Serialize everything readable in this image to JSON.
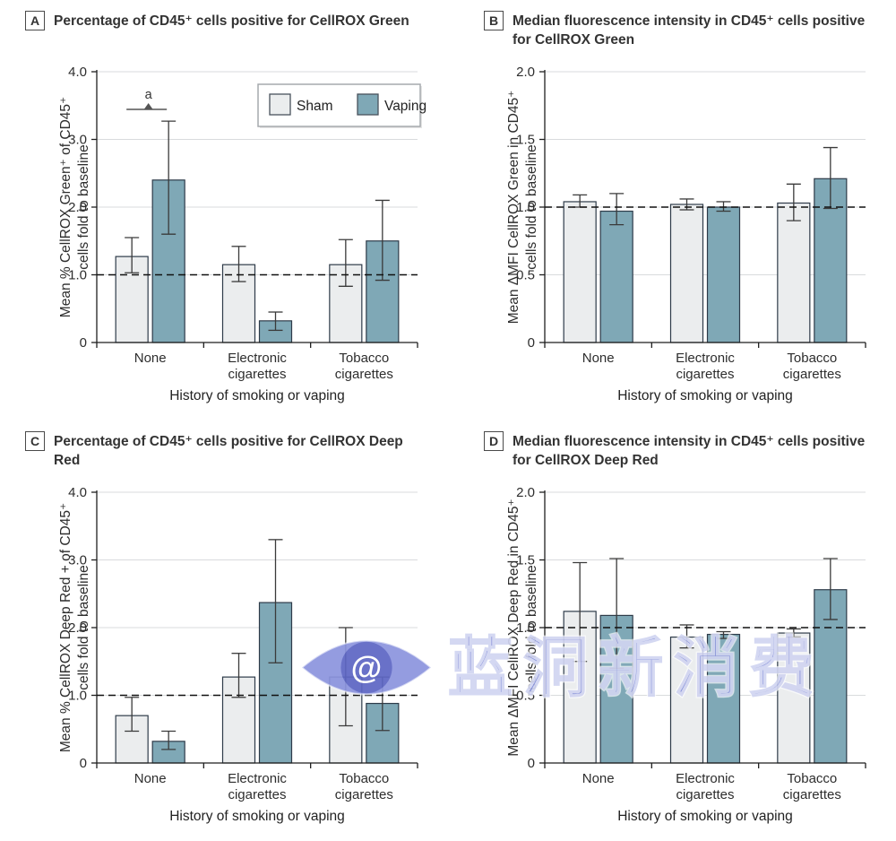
{
  "figure": {
    "type": "scientific-figure",
    "watermark": {
      "icon": "eye-at-logo",
      "at_symbol": "@",
      "text": "蓝洞新消费",
      "color": "#7b86d6"
    },
    "colors": {
      "sham_fill": "#ebedee",
      "vaping_fill": "#7fa8b6",
      "bar_stroke": "#2e3b49",
      "grid": "#d9dbdd",
      "axis": "#1f1f1f",
      "dashed_line": "#111111",
      "error_bar": "#3a3a3a"
    }
  },
  "chart_data": [
    {
      "id": "A",
      "type": "bar",
      "title": "Percentage of CD45⁺ cells positive for CellROX Green",
      "ylabel_lines": [
        "Mean % CellROX Green⁺ of CD45⁺",
        "cells fold to baseline"
      ],
      "ylim": [
        0,
        4.0
      ],
      "yticks": [
        {
          "v": 0,
          "label": "0"
        },
        {
          "v": 1,
          "label": "1.0"
        },
        {
          "v": 2,
          "label": "2.0"
        },
        {
          "v": 3,
          "label": "3.0"
        },
        {
          "v": 4,
          "label": "4.0"
        }
      ],
      "baseline": 1.0,
      "grid": true,
      "categories": [
        [
          "None"
        ],
        [
          "Electronic",
          "cigarettes"
        ],
        [
          "Tobacco",
          "cigarettes"
        ]
      ],
      "xlabel": "History of smoking or vaping",
      "series": [
        {
          "name": "Sham",
          "color": "#ebedee",
          "values": [
            1.27,
            1.15,
            1.15
          ],
          "err_lo": [
            1.03,
            0.9,
            0.83
          ],
          "err_hi": [
            1.55,
            1.42,
            1.52
          ]
        },
        {
          "name": "Vaping",
          "color": "#7fa8b6",
          "values": [
            2.4,
            0.32,
            1.5
          ],
          "err_lo": [
            1.6,
            0.18,
            0.92
          ],
          "err_hi": [
            3.27,
            0.45,
            2.1
          ]
        }
      ],
      "legend": true,
      "legend_position": "top-right",
      "significance": {
        "label": "a",
        "group": 0
      }
    },
    {
      "id": "B",
      "type": "bar",
      "title": "Median fluorescence intensity in CD45⁺ cells positive for CellROX Green",
      "ylabel_lines": [
        "Mean ΔMFI CellROX Green in CD45⁺",
        "cells fold to baseline"
      ],
      "ylim": [
        0,
        2.0
      ],
      "yticks": [
        {
          "v": 0,
          "label": "0"
        },
        {
          "v": 0.5,
          "label": "0.5"
        },
        {
          "v": 1,
          "label": "1.0"
        },
        {
          "v": 1.5,
          "label": "1.5"
        },
        {
          "v": 2,
          "label": "2.0"
        }
      ],
      "baseline": 1.0,
      "grid": true,
      "categories": [
        [
          "None"
        ],
        [
          "Electronic",
          "cigarettes"
        ],
        [
          "Tobacco",
          "cigarettes"
        ]
      ],
      "xlabel": "History of smoking or vaping",
      "series": [
        {
          "name": "Sham",
          "color": "#ebedee",
          "values": [
            1.04,
            1.02,
            1.03
          ],
          "err_lo": [
            1.0,
            0.98,
            0.9
          ],
          "err_hi": [
            1.09,
            1.06,
            1.17
          ]
        },
        {
          "name": "Vaping",
          "color": "#7fa8b6",
          "values": [
            0.97,
            1.0,
            1.21
          ],
          "err_lo": [
            0.87,
            0.97,
            0.99
          ],
          "err_hi": [
            1.1,
            1.04,
            1.44
          ]
        }
      ],
      "legend": false
    },
    {
      "id": "C",
      "type": "bar",
      "title": "Percentage of CD45⁺ cells positive for CellROX Deep Red",
      "ylabel_lines": [
        "Mean % CellROX Deep Red + of CD45⁺",
        "cells fold to baseline"
      ],
      "ylim": [
        0,
        4.0
      ],
      "yticks": [
        {
          "v": 0,
          "label": "0"
        },
        {
          "v": 1,
          "label": "1.0"
        },
        {
          "v": 2,
          "label": "2.0"
        },
        {
          "v": 3,
          "label": "3.0"
        },
        {
          "v": 4,
          "label": "4.0"
        }
      ],
      "baseline": 1.0,
      "grid": true,
      "categories": [
        [
          "None"
        ],
        [
          "Electronic",
          "cigarettes"
        ],
        [
          "Tobacco",
          "cigarettes"
        ]
      ],
      "xlabel": "History of smoking or vaping",
      "series": [
        {
          "name": "Sham",
          "color": "#ebedee",
          "values": [
            0.7,
            1.27,
            1.27
          ],
          "err_lo": [
            0.47,
            0.97,
            0.55
          ],
          "err_hi": [
            0.97,
            1.62,
            2.0
          ]
        },
        {
          "name": "Vaping",
          "color": "#7fa8b6",
          "values": [
            0.32,
            2.37,
            0.88
          ],
          "err_lo": [
            0.2,
            1.48,
            0.48
          ],
          "err_hi": [
            0.47,
            3.3,
            1.27
          ]
        }
      ],
      "legend": false
    },
    {
      "id": "D",
      "type": "bar",
      "title": "Median fluorescence intensity in CD45⁺ cells positive for CellROX Deep Red",
      "ylabel_lines": [
        "Mean ΔMFI CellROX Deep Red in CD45⁺",
        "cells fold to baseline"
      ],
      "ylim": [
        0,
        2.0
      ],
      "yticks": [
        {
          "v": 0,
          "label": "0"
        },
        {
          "v": 0.5,
          "label": "0.5"
        },
        {
          "v": 1,
          "label": "1.0"
        },
        {
          "v": 1.5,
          "label": "1.5"
        },
        {
          "v": 2,
          "label": "2.0"
        }
      ],
      "baseline": 1.0,
      "grid": true,
      "categories": [
        [
          "None"
        ],
        [
          "Electronic",
          "cigarettes"
        ],
        [
          "Tobacco",
          "cigarettes"
        ]
      ],
      "xlabel": "History of smoking or vaping",
      "series": [
        {
          "name": "Sham",
          "color": "#ebedee",
          "values": [
            1.12,
            0.93,
            0.96
          ],
          "err_lo": [
            0.75,
            0.85,
            0.93
          ],
          "err_hi": [
            1.48,
            1.02,
            0.99
          ]
        },
        {
          "name": "Vaping",
          "color": "#7fa8b6",
          "values": [
            1.09,
            0.95,
            1.28
          ],
          "err_lo": [
            0.7,
            0.92,
            1.06
          ],
          "err_hi": [
            1.51,
            0.97,
            1.51
          ]
        }
      ],
      "legend": false
    }
  ]
}
